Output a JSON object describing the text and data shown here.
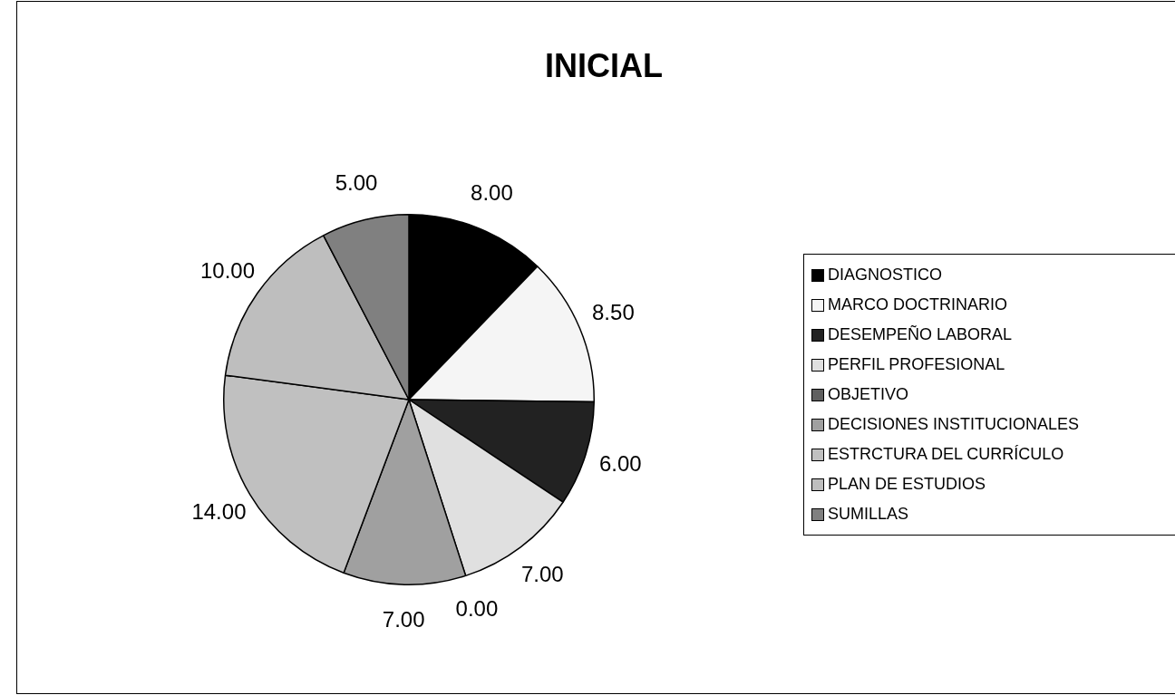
{
  "chart_data": {
    "type": "pie",
    "title": "INICIAL",
    "categories": [
      "DIAGNOSTICO",
      "MARCO DOCTRINARIO",
      "DESEMPEÑO LABORAL",
      "PERFIL PROFESIONAL",
      "OBJETIVO",
      "DECISIONES INSTITUCIONALES",
      "ESTRCTURA DEL CURRÍCULO",
      "PLAN DE ESTUDIOS",
      "SUMILLAS"
    ],
    "values": [
      8,
      8.5,
      6,
      7,
      0,
      7,
      14,
      10,
      5
    ],
    "value_labels": [
      "8.00",
      "8.50",
      "6.00",
      "7.00",
      "0.00",
      "7.00",
      "14.00",
      "10.00",
      "5.00"
    ],
    "colors": [
      "#000000",
      "#f5f5f5",
      "#222222",
      "#e0e0e0",
      "#606060",
      "#a0a0a0",
      "#c0c0c0",
      "#bebebe",
      "#808080"
    ],
    "legend": "right"
  }
}
